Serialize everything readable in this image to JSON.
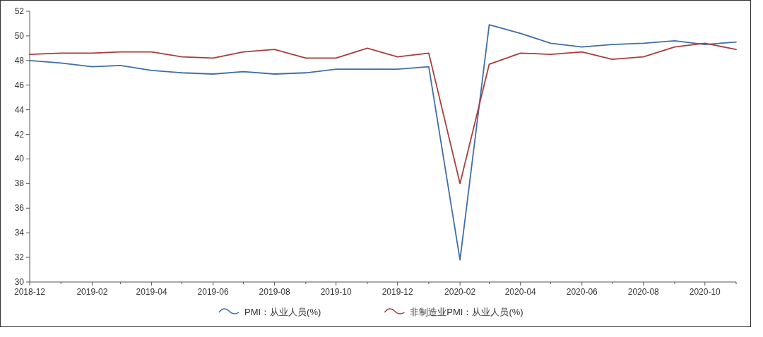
{
  "chart_data": {
    "type": "line",
    "x": [
      "2018-12",
      "2019-01",
      "2019-02",
      "2019-03",
      "2019-04",
      "2019-05",
      "2019-06",
      "2019-07",
      "2019-08",
      "2019-09",
      "2019-10",
      "2019-11",
      "2019-12",
      "2020-01",
      "2020-02",
      "2020-03",
      "2020-04",
      "2020-05",
      "2020-06",
      "2020-07",
      "2020-08",
      "2020-09",
      "2020-10",
      "2020-11"
    ],
    "series": [
      {
        "name": "PMI：从业人员(%)",
        "color": "#3f6ea8",
        "values": [
          48.0,
          47.8,
          47.5,
          47.6,
          47.2,
          47.0,
          46.9,
          47.1,
          46.9,
          47.0,
          47.3,
          47.3,
          47.3,
          47.5,
          31.8,
          50.9,
          50.2,
          49.4,
          49.1,
          49.3,
          49.4,
          49.6,
          49.3,
          49.5
        ]
      },
      {
        "name": "非制造业PMI：从业人员(%)",
        "color": "#a83d3d",
        "values": [
          48.5,
          48.6,
          48.6,
          48.7,
          48.7,
          48.3,
          48.2,
          48.7,
          48.9,
          48.2,
          48.2,
          49.0,
          48.3,
          48.6,
          38.0,
          47.7,
          48.6,
          48.5,
          48.7,
          48.1,
          48.3,
          49.1,
          49.4,
          48.9
        ]
      }
    ],
    "xlim": [
      "2018-12",
      "2020-11"
    ],
    "xticks": [
      {
        "value": "2018-12",
        "label": "2018-12"
      },
      {
        "value": "2019-01",
        "label": null
      },
      {
        "value": "2019-02",
        "label": "2019-02"
      },
      {
        "value": "2019-03",
        "label": null
      },
      {
        "value": "2019-04",
        "label": "2019-04"
      },
      {
        "value": "2019-05",
        "label": null
      },
      {
        "value": "2019-06",
        "label": "2019-06"
      },
      {
        "value": "2019-07",
        "label": null
      },
      {
        "value": "2019-08",
        "label": "2019-08"
      },
      {
        "value": "2019-09",
        "label": null
      },
      {
        "value": "2019-10",
        "label": "2019-10"
      },
      {
        "value": "2019-11",
        "label": null
      },
      {
        "value": "2019-12",
        "label": "2019-12"
      },
      {
        "value": "2020-01",
        "label": null
      },
      {
        "value": "2020-02",
        "label": "2020-02"
      },
      {
        "value": "2020-03",
        "label": null
      },
      {
        "value": "2020-04",
        "label": "2020-04"
      },
      {
        "value": "2020-05",
        "label": null
      },
      {
        "value": "2020-06",
        "label": "2020-06"
      },
      {
        "value": "2020-07",
        "label": null
      },
      {
        "value": "2020-08",
        "label": "2020-08"
      },
      {
        "value": "2020-09",
        "label": null
      },
      {
        "value": "2020-10",
        "label": "2020-10"
      },
      {
        "value": "2020-11",
        "label": null
      }
    ],
    "ylim": [
      30,
      52
    ],
    "yticks": [
      30,
      32,
      34,
      36,
      38,
      40,
      42,
      44,
      46,
      48,
      50,
      52
    ],
    "grid": false,
    "legend": "bottom",
    "line_style": "solid",
    "marker": "none"
  }
}
